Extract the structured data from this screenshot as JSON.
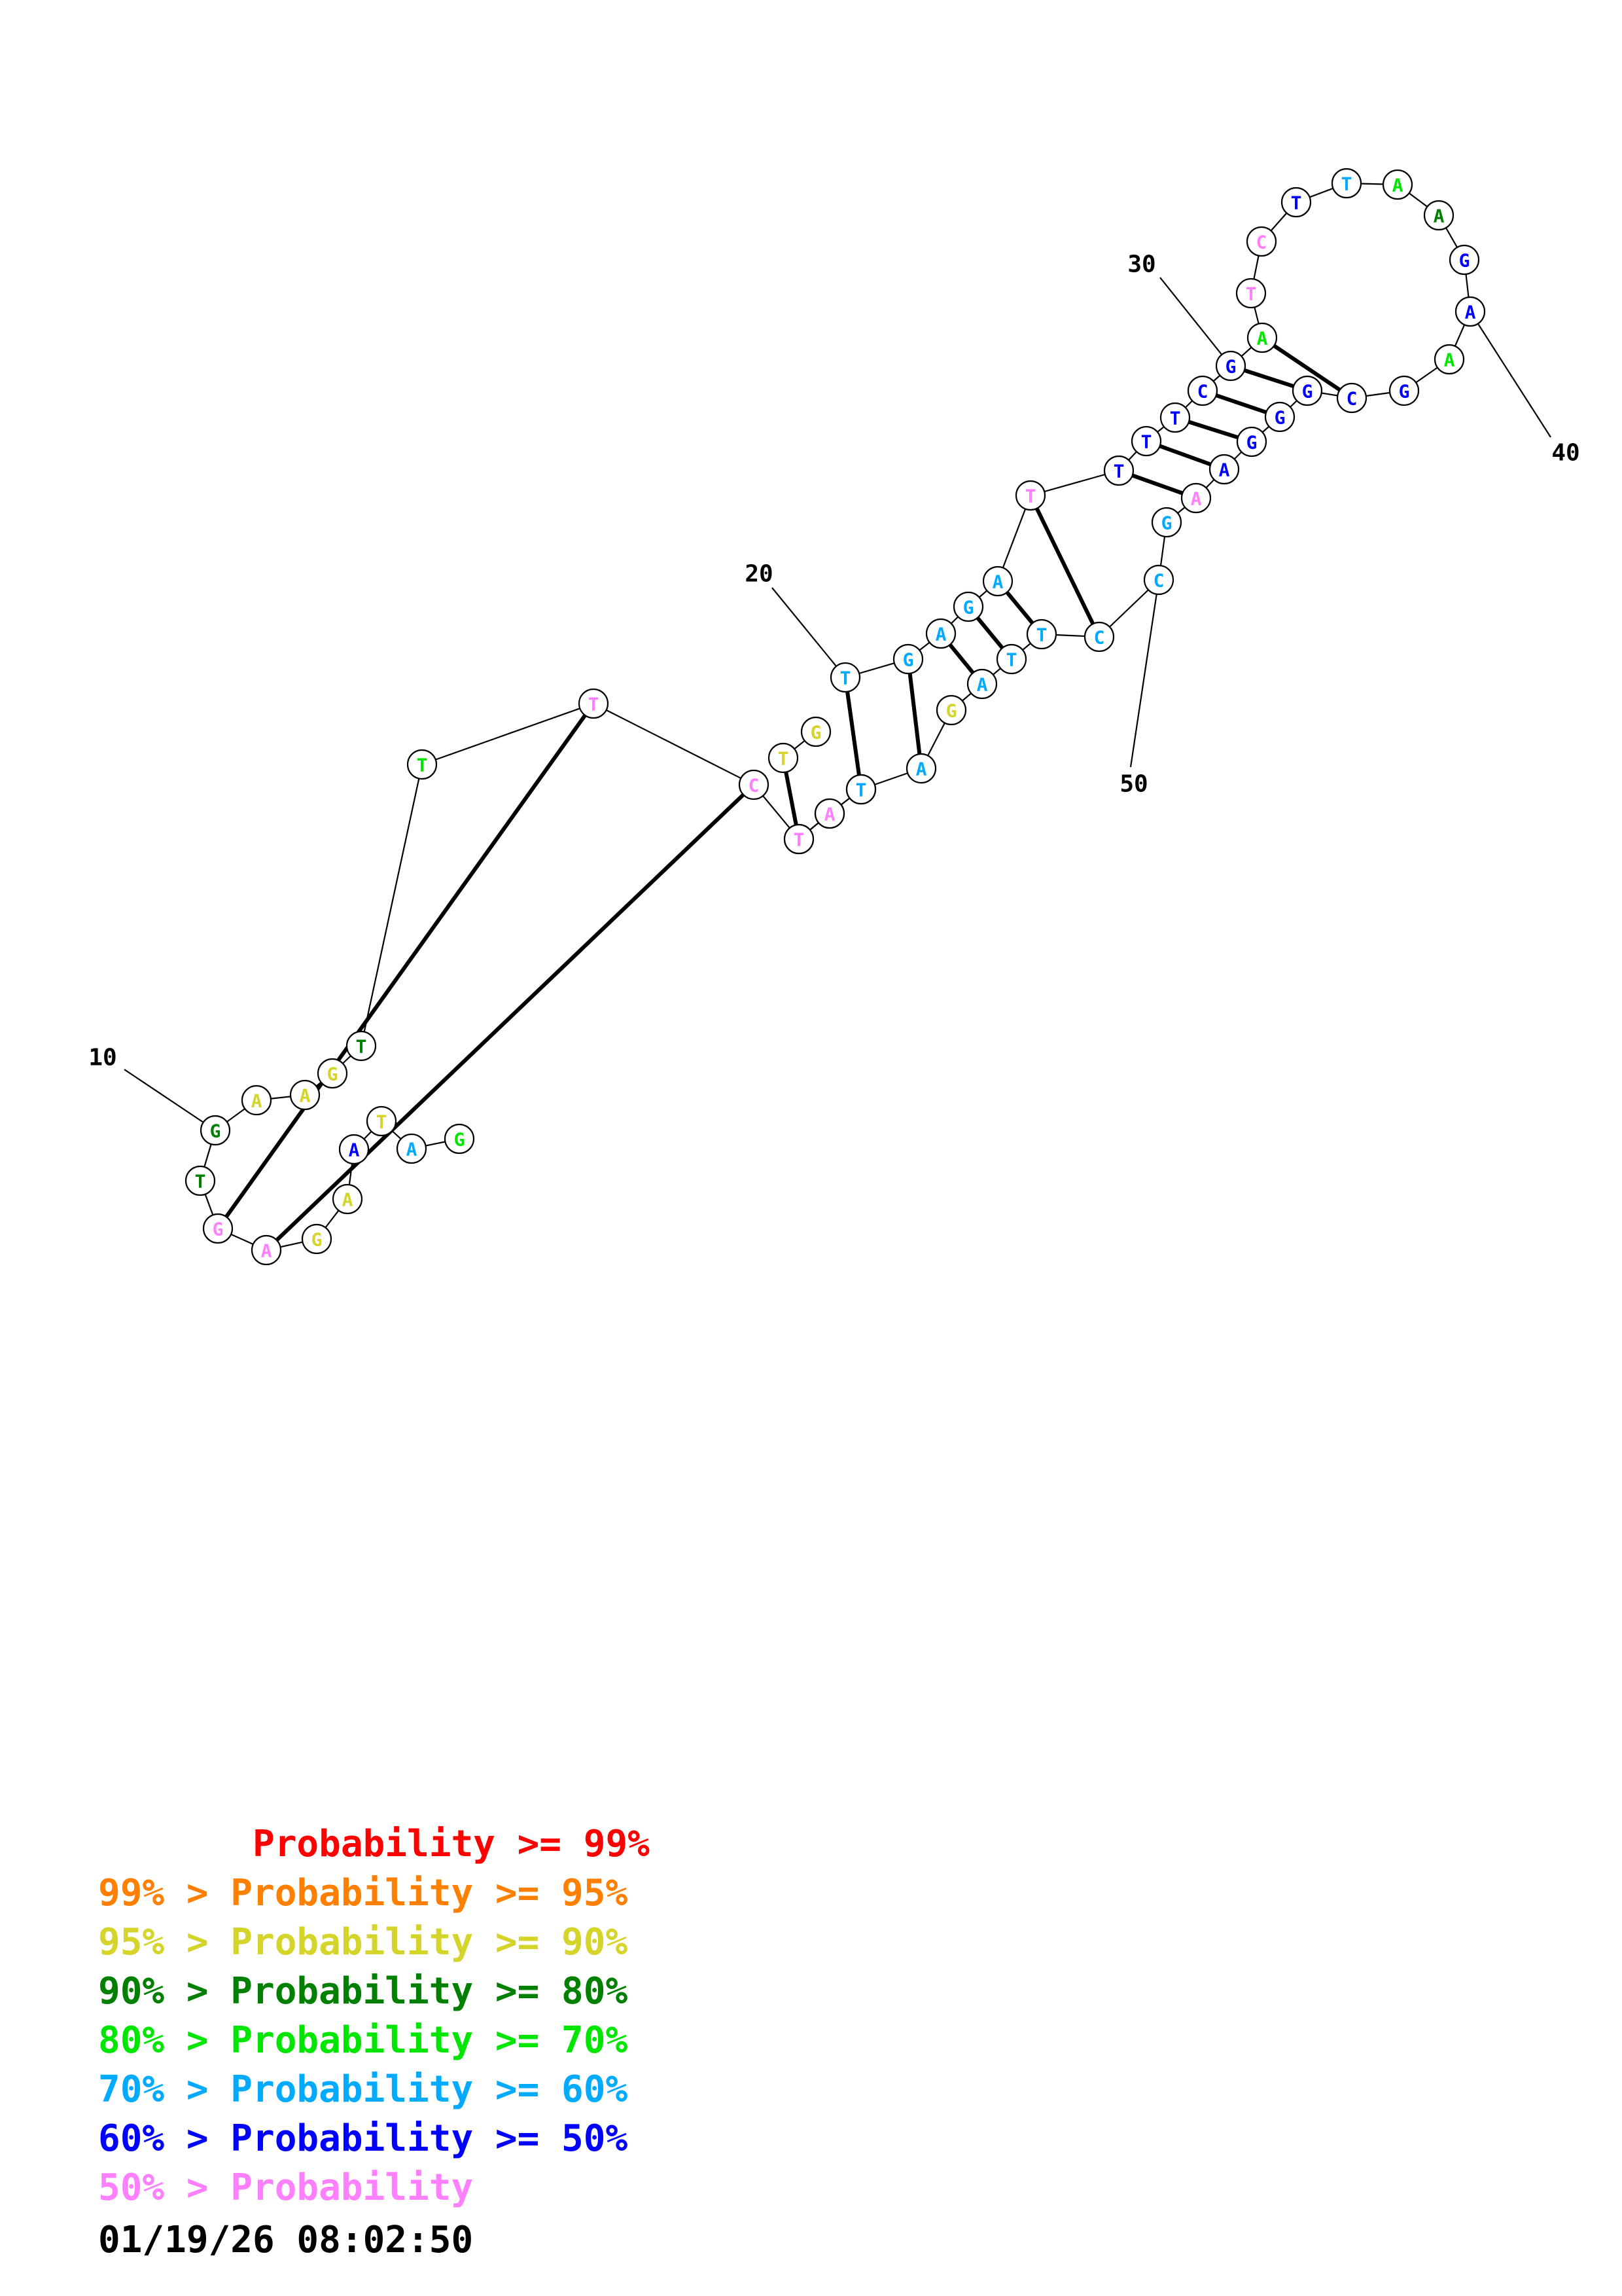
{
  "structure": {
    "nucleotides": [
      {
        "n": 1,
        "base": "G",
        "prob": "p70"
      },
      {
        "n": 2,
        "base": "A",
        "prob": "p60"
      },
      {
        "n": 3,
        "base": "T",
        "prob": "p90"
      },
      {
        "n": 4,
        "base": "A",
        "prob": "p50"
      },
      {
        "n": 5,
        "base": "A",
        "prob": "p90"
      },
      {
        "n": 6,
        "base": "G",
        "prob": "p90"
      },
      {
        "n": 7,
        "base": "A",
        "prob": "plow"
      },
      {
        "n": 8,
        "base": "G",
        "prob": "plow"
      },
      {
        "n": 9,
        "base": "T",
        "prob": "p80"
      },
      {
        "n": 10,
        "base": "G",
        "prob": "p80"
      },
      {
        "n": 11,
        "base": "A",
        "prob": "p90"
      },
      {
        "n": 12,
        "base": "A",
        "prob": "p90"
      },
      {
        "n": 13,
        "base": "G",
        "prob": "p90"
      },
      {
        "n": 14,
        "base": "T",
        "prob": "p80"
      },
      {
        "n": 15,
        "base": "T",
        "prob": "p70"
      },
      {
        "n": 16,
        "base": "T",
        "prob": "plow"
      },
      {
        "n": 17,
        "base": "C",
        "prob": "plow"
      },
      {
        "n": 18,
        "base": "T",
        "prob": "plow"
      },
      {
        "n": 19,
        "base": "G",
        "prob": "p80"
      },
      {
        "n": 20,
        "base": "G",
        "prob": "p99"
      },
      {
        "n": 21,
        "base": "T",
        "prob": "p60"
      },
      {
        "n": 22,
        "base": "G",
        "prob": "p60"
      },
      {
        "n": 23,
        "base": "A",
        "prob": "p60"
      },
      {
        "n": 24,
        "base": "G",
        "prob": "p60"
      },
      {
        "n": 25,
        "base": "A",
        "prob": "p60"
      },
      {
        "n": 26,
        "base": "T",
        "prob": "plow"
      },
      {
        "n": 27,
        "base": "T",
        "prob": "p50"
      },
      {
        "n": 28,
        "base": "T",
        "prob": "p50"
      },
      {
        "n": 29,
        "base": "T",
        "prob": "p50"
      },
      {
        "n": 30,
        "base": "C",
        "prob": "p50"
      },
      {
        "n": 31,
        "base": "G",
        "prob": "p50"
      },
      {
        "n": 32,
        "base": "A",
        "prob": "p70"
      },
      {
        "n": 33,
        "base": "T",
        "prob": "plow"
      },
      {
        "n": 34,
        "base": "C",
        "prob": "plow"
      },
      {
        "n": 35,
        "base": "T",
        "prob": "p50"
      },
      {
        "n": 36,
        "base": "T",
        "prob": "p60"
      },
      {
        "n": 37,
        "base": "A",
        "prob": "p70"
      },
      {
        "n": 38,
        "base": "A",
        "prob": "p80"
      },
      {
        "n": 39,
        "base": "G",
        "prob": "p50"
      },
      {
        "n": 40,
        "base": "A",
        "prob": "p50"
      },
      {
        "n": 41,
        "base": "A",
        "prob": "p70"
      },
      {
        "n": 42,
        "base": "G",
        "prob": "p50"
      },
      {
        "n": 43,
        "base": "C",
        "prob": "p50"
      },
      {
        "n": 44,
        "base": "G",
        "prob": "p50"
      },
      {
        "n": 45,
        "base": "G",
        "prob": "p50"
      },
      {
        "n": 46,
        "base": "G",
        "prob": "p50"
      },
      {
        "n": 47,
        "base": "A",
        "prob": "p50"
      },
      {
        "n": 48,
        "base": "A",
        "prob": "plow"
      },
      {
        "n": 49,
        "base": "G",
        "prob": "p60"
      },
      {
        "n": 50,
        "base": "C",
        "prob": "p60"
      },
      {
        "n": 51,
        "base": "C",
        "prob": "p60"
      },
      {
        "n": 52,
        "base": "T",
        "prob": "p60"
      },
      {
        "n": 53,
        "base": "T",
        "prob": "p60"
      },
      {
        "n": 54,
        "base": "A",
        "prob": "p60"
      },
      {
        "n": 55,
        "base": "G",
        "prob": "p90"
      },
      {
        "n": 56,
        "base": "A",
        "prob": "p60"
      },
      {
        "n": 57,
        "base": "T",
        "prob": "p60"
      },
      {
        "n": 58,
        "base": "A",
        "prob": "plow"
      },
      {
        "n": 59,
        "base": "T",
        "prob": "plow"
      },
      {
        "n": 60,
        "base": "T",
        "prob": "p90"
      },
      {
        "n": 61,
        "base": "G",
        "prob": "p90"
      }
    ],
    "pairs": [
      [
        7,
        17
      ],
      [
        8,
        16
      ],
      [
        18,
        60
      ],
      [
        21,
        57
      ],
      [
        22,
        56
      ],
      [
        23,
        54
      ],
      [
        24,
        53
      ],
      [
        25,
        52
      ],
      [
        26,
        51
      ],
      [
        27,
        48
      ],
      [
        28,
        47
      ],
      [
        29,
        46
      ],
      [
        30,
        45
      ],
      [
        31,
        44
      ],
      [
        32,
        43
      ]
    ],
    "numbers": [
      {
        "n": 10,
        "label": "10"
      },
      {
        "n": 20,
        "label": "20"
      },
      {
        "n": 30,
        "label": "30"
      },
      {
        "n": 40,
        "label": "40"
      },
      {
        "n": 50,
        "label": "50"
      }
    ]
  },
  "colors": {
    "p99": "#ff0000",
    "p95": "#ff8000",
    "p90": "#d4d42a",
    "p80": "#008000",
    "p70": "#00e600",
    "p60": "#00aaff",
    "p50": "#0000ff",
    "plow": "#ff80ff"
  },
  "legend": [
    {
      "text": "       Probability >= 99%",
      "color": "#ff0000"
    },
    {
      "text": "99% > Probability >= 95%",
      "color": "#ff8000"
    },
    {
      "text": "95% > Probability >= 90%",
      "color": "#d4d42a"
    },
    {
      "text": "90% > Probability >= 80%",
      "color": "#008000"
    },
    {
      "text": "80% > Probability >= 70%",
      "color": "#00e600"
    },
    {
      "text": "70% > Probability >= 60%",
      "color": "#00aaff"
    },
    {
      "text": "60% > Probability >= 50%",
      "color": "#0000ff"
    },
    {
      "text": "50% > Probability",
      "color": "#ff80ff"
    }
  ],
  "timestamp": "01/19/26 08:02:50"
}
